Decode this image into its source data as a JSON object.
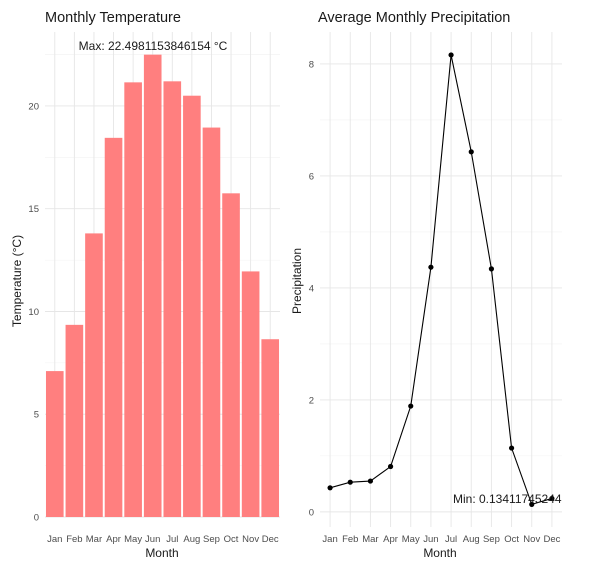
{
  "chart_data": [
    {
      "type": "bar",
      "title": "Monthly Temperature",
      "xlabel": "Month",
      "ylabel": "Temperature (°C)",
      "categories": [
        "Jan",
        "Feb",
        "Mar",
        "Apr",
        "May",
        "Jun",
        "Jul",
        "Aug",
        "Sep",
        "Oct",
        "Nov",
        "Dec"
      ],
      "values": [
        7.1,
        9.35,
        13.8,
        18.45,
        21.15,
        22.498,
        21.2,
        20.5,
        18.95,
        15.75,
        11.95,
        8.65
      ],
      "yticks": [
        0,
        5,
        10,
        15,
        20
      ],
      "ylim": [
        0,
        23.6
      ],
      "bar_color": "#ff7f7f",
      "annotation": "Max: 22.4981153846154 °C",
      "grid": true,
      "legend": "none"
    },
    {
      "type": "line",
      "title": "Average Monthly Precipitation",
      "xlabel": "Month",
      "ylabel": "Precipitation",
      "categories": [
        "Jan",
        "Feb",
        "Mar",
        "Apr",
        "May",
        "Jun",
        "Jul",
        "Aug",
        "Sep",
        "Oct",
        "Nov",
        "Dec"
      ],
      "values": [
        0.43,
        0.53,
        0.55,
        0.81,
        1.89,
        4.37,
        8.16,
        6.43,
        4.34,
        1.14,
        0.134,
        0.24
      ],
      "yticks": [
        0,
        2,
        4,
        6,
        8
      ],
      "ylim": [
        -0.27,
        8.57
      ],
      "line_color": "#000000",
      "annotation": "Min: 0.13411745244",
      "grid": true,
      "legend": "none"
    }
  ]
}
